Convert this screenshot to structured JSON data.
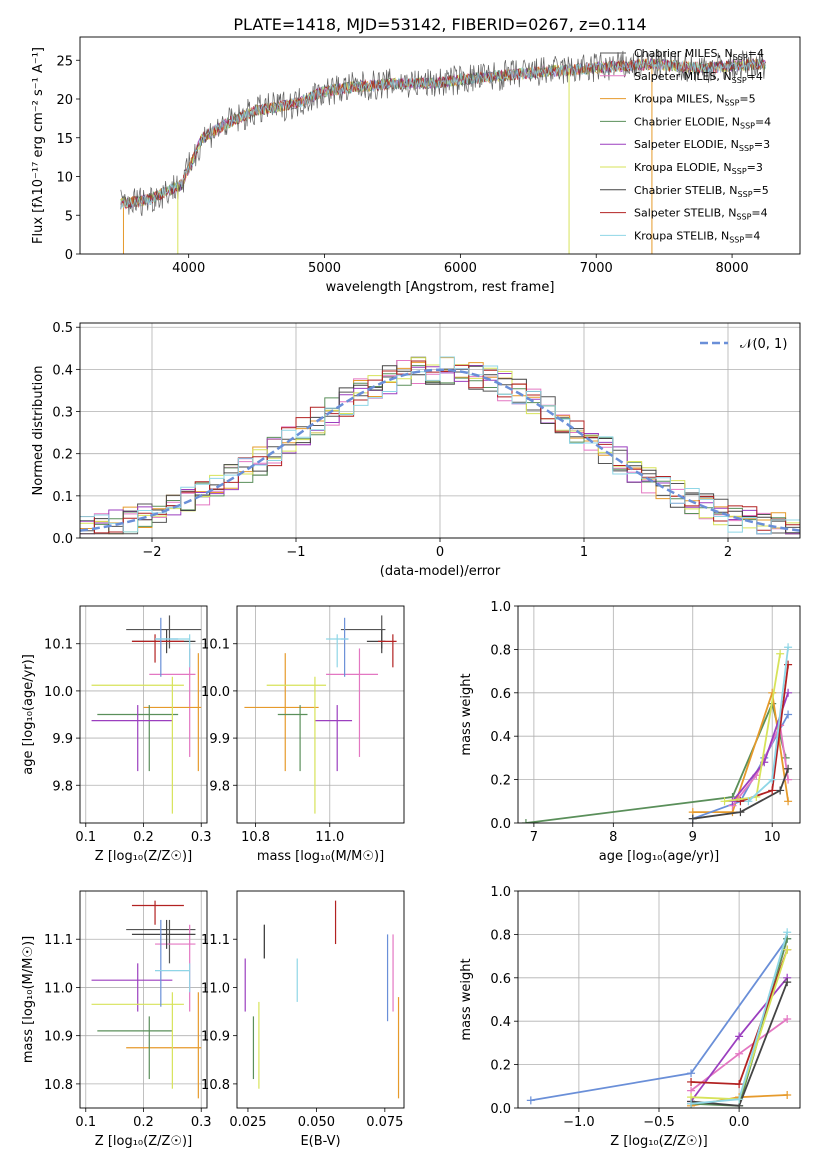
{
  "figure": {
    "title": "PLATE=1418, MJD=53142, FIBERID=0267, z=0.114"
  },
  "colors": {
    "Chabrier MILES": "#555555",
    "Salpeter MILES": "#e377c2",
    "Kroupa MILES": "#e69a2b",
    "Chabrier ELODIE": "#5a8f5a",
    "Salpeter ELODIE": "#9b3fbf",
    "Kroupa ELODIE": "#d7e35a",
    "Chabrier STELIB": "#444444",
    "Salpeter STELIB": "#b22222",
    "Kroupa STELIB": "#8fd6e6",
    "blue_series": "#6a8fd8",
    "orange_series": "#e07b2a"
  },
  "chart_data": [
    {
      "id": "spectrum",
      "type": "line",
      "title": "PLATE=1418, MJD=53142, FIBERID=0267, z=0.114",
      "xlabel": "wavelength [Angstrom, rest frame]",
      "ylabel": "Flux [fλ10⁻¹⁷ erg cm⁻² s⁻¹ A⁻¹]",
      "xlim": [
        3200,
        8500
      ],
      "ylim": [
        0,
        28
      ],
      "xticks": [
        "4000",
        "5000",
        "6000",
        "7000",
        "8000"
      ],
      "yticks": [
        "0",
        "5",
        "10",
        "15",
        "20",
        "25"
      ],
      "legend_position": "right",
      "legend": [
        {
          "label": "Chabrier MILES, N_SSP=4",
          "color_key": "Chabrier MILES"
        },
        {
          "label": "Salpeter MILES, N_SSP=4",
          "color_key": "Salpeter MILES"
        },
        {
          "label": "Kroupa MILES, N_SSP=5",
          "color_key": "Kroupa MILES"
        },
        {
          "label": "Chabrier ELODIE, N_SSP=4",
          "color_key": "Chabrier ELODIE"
        },
        {
          "label": "Salpeter ELODIE, N_SSP=3",
          "color_key": "Salpeter ELODIE"
        },
        {
          "label": "Kroupa ELODIE, N_SSP=3",
          "color_key": "Kroupa ELODIE"
        },
        {
          "label": "Chabrier STELIB, N_SSP=5",
          "color_key": "Chabrier STELIB"
        },
        {
          "label": "Salpeter STELIB, N_SSP=4",
          "color_key": "Salpeter STELIB"
        },
        {
          "label": "Kroupa STELIB, N_SSP=4",
          "color_key": "Kroupa STELIB"
        }
      ],
      "continuum": [
        [
          3500,
          6.5
        ],
        [
          3700,
          7
        ],
        [
          3950,
          9
        ],
        [
          4100,
          15
        ],
        [
          4300,
          17
        ],
        [
          4500,
          18.5
        ],
        [
          4800,
          19.5
        ],
        [
          5000,
          21
        ],
        [
          5200,
          21.5
        ],
        [
          5500,
          22
        ],
        [
          5800,
          22
        ],
        [
          6000,
          22.5
        ],
        [
          6300,
          23
        ],
        [
          6600,
          23.5
        ],
        [
          7000,
          24
        ],
        [
          7400,
          24.5
        ],
        [
          7800,
          24
        ],
        [
          8200,
          24.5
        ]
      ]
    },
    {
      "id": "residual-hist",
      "type": "histogram",
      "xlabel": "(data-model)/error",
      "ylabel": "Normed distribution",
      "xlim": [
        -2.5,
        2.5
      ],
      "ylim": [
        0,
        0.51
      ],
      "xticks": [
        "−2",
        "−1",
        "0",
        "1",
        "2"
      ],
      "yticks": [
        "0.0",
        "0.1",
        "0.2",
        "0.3",
        "0.4",
        "0.5"
      ],
      "legend": [
        {
          "label": "𝒩(0, 1)",
          "style": "dashed"
        }
      ],
      "bin_width": 0.1
    },
    {
      "id": "age-vs-Z",
      "type": "errorbar",
      "xlabel": "Z [log₁₀(Z/Z☉)]",
      "ylabel": "age  [log₁₀(age/yr)]",
      "xlim": [
        0.09,
        0.31
      ],
      "ylim": [
        9.72,
        10.18
      ],
      "xticks": [
        "0.1",
        "0.2",
        "0.3"
      ],
      "yticks": [
        "9.8",
        "9.9",
        "10.0",
        "10.1"
      ],
      "points": [
        {
          "c": "Chabrier MILES",
          "x": 0.245,
          "xe": [
            0.17,
            0.3
          ],
          "y": 10.13,
          "ye": [
            10.09,
            10.16
          ]
        },
        {
          "c": "Salpeter MILES",
          "x": 0.28,
          "xe": [
            0.21,
            0.29
          ],
          "y": 10.035,
          "ye": [
            9.86,
            10.09
          ]
        },
        {
          "c": "Kroupa MILES",
          "x": 0.295,
          "xe": [
            0.2,
            0.3
          ],
          "y": 9.965,
          "ye": [
            9.83,
            10.08
          ]
        },
        {
          "c": "Chabrier ELODIE",
          "x": 0.21,
          "xe": [
            0.12,
            0.26
          ],
          "y": 9.95,
          "ye": [
            9.83,
            9.97
          ]
        },
        {
          "c": "Salpeter ELODIE",
          "x": 0.19,
          "xe": [
            0.11,
            0.25
          ],
          "y": 9.937,
          "ye": [
            9.83,
            9.97
          ]
        },
        {
          "c": "Kroupa ELODIE",
          "x": 0.25,
          "xe": [
            0.11,
            0.27
          ],
          "y": 10.012,
          "ye": [
            9.74,
            10.03
          ]
        },
        {
          "c": "Chabrier STELIB",
          "x": 0.24,
          "xe": [
            0.18,
            0.29
          ],
          "y": 10.105,
          "ye": [
            10.08,
            10.13
          ]
        },
        {
          "c": "Salpeter STELIB",
          "x": 0.22,
          "xe": [
            0.18,
            0.27
          ],
          "y": 10.105,
          "ye": [
            10.06,
            10.12
          ]
        },
        {
          "c": "blue_series",
          "x": 0.23,
          "xe": [
            0.22,
            0.26
          ],
          "y": 10.11,
          "ye": [
            10.03,
            10.155
          ]
        },
        {
          "c": "Kroupa STELIB",
          "x": 0.28,
          "xe": [
            0.22,
            0.28
          ],
          "y": 10.11,
          "ye": [
            10.05,
            10.12
          ]
        }
      ]
    },
    {
      "id": "age-vs-mass",
      "type": "errorbar",
      "xlabel": "mass [log₁₀(M/M☉)]",
      "ylabel": "",
      "xlim": [
        10.75,
        11.2
      ],
      "ylim": [
        9.72,
        10.18
      ],
      "xticks": [
        "10.8",
        "11.0"
      ],
      "yticks": [
        "9.8",
        "9.9",
        "10.0",
        "10.1"
      ],
      "points": [
        {
          "c": "Chabrier MILES",
          "x": 11.14,
          "xe": [
            11.03,
            11.15
          ],
          "y": 10.13,
          "ye": [
            10.09,
            10.16
          ]
        },
        {
          "c": "Salpeter MILES",
          "x": 11.08,
          "xe": [
            10.99,
            11.13
          ],
          "y": 10.035,
          "ye": [
            9.86,
            10.09
          ]
        },
        {
          "c": "Kroupa MILES",
          "x": 10.88,
          "xe": [
            10.77,
            10.97
          ],
          "y": 9.965,
          "ye": [
            9.83,
            10.08
          ]
        },
        {
          "c": "Chabrier ELODIE",
          "x": 10.92,
          "xe": [
            10.86,
            10.94
          ],
          "y": 9.95,
          "ye": [
            9.83,
            9.97
          ]
        },
        {
          "c": "Salpeter ELODIE",
          "x": 11.02,
          "xe": [
            10.96,
            11.06
          ],
          "y": 9.937,
          "ye": [
            9.83,
            9.97
          ]
        },
        {
          "c": "Kroupa ELODIE",
          "x": 10.96,
          "xe": [
            10.83,
            10.99
          ],
          "y": 10.012,
          "ye": [
            9.74,
            10.03
          ]
        },
        {
          "c": "Chabrier STELIB",
          "x": 11.14,
          "xe": [
            11.1,
            11.15
          ],
          "y": 10.105,
          "ye": [
            10.08,
            10.13
          ]
        },
        {
          "c": "Salpeter STELIB",
          "x": 11.17,
          "xe": [
            11.13,
            11.18
          ],
          "y": 10.105,
          "ye": [
            10.05,
            10.12
          ]
        },
        {
          "c": "blue_series",
          "x": 11.04,
          "xe": [
            11.03,
            11.05
          ],
          "y": 10.11,
          "ye": [
            10.03,
            10.155
          ]
        },
        {
          "c": "Kroupa STELIB",
          "x": 11.02,
          "xe": [
            10.99,
            11.05
          ],
          "y": 10.11,
          "ye": [
            10.05,
            10.12
          ]
        }
      ]
    },
    {
      "id": "weight-vs-age",
      "type": "line",
      "xlabel": "age  [log₁₀(age/yr)]",
      "ylabel": "mass weight",
      "xlim": [
        6.8,
        10.35
      ],
      "ylim": [
        0,
        1
      ],
      "xticks": [
        "7",
        "8",
        "9",
        "10"
      ],
      "yticks": [
        "0.0",
        "0.2",
        "0.4",
        "0.6",
        "0.8",
        "1.0"
      ],
      "series": [
        {
          "c": "Chabrier ELODIE",
          "points": [
            [
              6.9,
              0.0
            ],
            [
              9.5,
              0.12
            ],
            [
              10.0,
              0.55
            ],
            [
              10.17,
              0.3
            ]
          ]
        },
        {
          "c": "Kroupa MILES",
          "points": [
            [
              9.0,
              0.05
            ],
            [
              9.5,
              0.05
            ],
            [
              10.0,
              0.6
            ],
            [
              10.2,
              0.1
            ]
          ]
        },
        {
          "c": "blue_series",
          "points": [
            [
              9.0,
              0.02
            ],
            [
              9.6,
              0.1
            ],
            [
              9.9,
              0.3
            ],
            [
              10.2,
              0.5
            ]
          ]
        },
        {
          "c": "Salpeter MILES",
          "points": [
            [
              9.5,
              0.08
            ],
            [
              9.8,
              0.22
            ],
            [
              10.1,
              0.45
            ],
            [
              10.2,
              0.2
            ]
          ]
        },
        {
          "c": "Salpeter ELODIE",
          "points": [
            [
              9.5,
              0.1
            ],
            [
              9.9,
              0.28
            ],
            [
              10.2,
              0.6
            ]
          ]
        },
        {
          "c": "Chabrier STELIB",
          "points": [
            [
              9.0,
              0.02
            ],
            [
              9.6,
              0.05
            ],
            [
              10.1,
              0.15
            ],
            [
              10.2,
              0.25
            ]
          ]
        },
        {
          "c": "Salpeter STELIB",
          "points": [
            [
              9.6,
              0.1
            ],
            [
              10.0,
              0.15
            ],
            [
              10.2,
              0.73
            ]
          ]
        },
        {
          "c": "Kroupa ELODIE",
          "points": [
            [
              9.4,
              0.1
            ],
            [
              9.8,
              0.12
            ],
            [
              10.1,
              0.78
            ]
          ]
        },
        {
          "c": "Kroupa STELIB",
          "points": [
            [
              9.7,
              0.1
            ],
            [
              10.0,
              0.2
            ],
            [
              10.2,
              0.81
            ]
          ]
        }
      ]
    },
    {
      "id": "mass-vs-Z",
      "type": "errorbar",
      "xlabel": "Z [log₁₀(Z/Z☉)]",
      "ylabel": "mass [log₁₀(M/M☉)]",
      "xlim": [
        0.09,
        0.31
      ],
      "ylim": [
        10.75,
        11.2
      ],
      "xticks": [
        "0.1",
        "0.2",
        "0.3"
      ],
      "yticks": [
        "10.8",
        "10.9",
        "11.0",
        "11.1"
      ],
      "points": [
        {
          "c": "Chabrier MILES",
          "x": 0.245,
          "xe": [
            0.17,
            0.29
          ],
          "y": 11.12,
          "ye": [
            11.05,
            11.14
          ]
        },
        {
          "c": "Salpeter MILES",
          "x": 0.28,
          "xe": [
            0.22,
            0.29
          ],
          "y": 11.09,
          "ye": [
            10.95,
            11.13
          ]
        },
        {
          "c": "Kroupa MILES",
          "x": 0.295,
          "xe": [
            0.17,
            0.3
          ],
          "y": 10.875,
          "ye": [
            10.77,
            10.99
          ]
        },
        {
          "c": "Chabrier ELODIE",
          "x": 0.21,
          "xe": [
            0.12,
            0.25
          ],
          "y": 10.91,
          "ye": [
            10.81,
            10.94
          ]
        },
        {
          "c": "Salpeter ELODIE",
          "x": 0.19,
          "xe": [
            0.11,
            0.25
          ],
          "y": 11.015,
          "ye": [
            10.95,
            11.05
          ]
        },
        {
          "c": "Kroupa ELODIE",
          "x": 0.25,
          "xe": [
            0.11,
            0.27
          ],
          "y": 10.965,
          "ye": [
            10.79,
            10.99
          ]
        },
        {
          "c": "Chabrier STELIB",
          "x": 0.24,
          "xe": [
            0.18,
            0.29
          ],
          "y": 11.11,
          "ye": [
            11.08,
            11.14
          ]
        },
        {
          "c": "Salpeter STELIB",
          "x": 0.22,
          "xe": [
            0.18,
            0.27
          ],
          "y": 11.17,
          "ye": [
            11.13,
            11.18
          ]
        },
        {
          "c": "blue_series",
          "x": 0.23,
          "xe": [
            0.22,
            0.28
          ],
          "y": 11.035,
          "ye": [
            10.96,
            11.14
          ]
        },
        {
          "c": "Kroupa STELIB",
          "x": 0.28,
          "xe": [
            0.22,
            0.28
          ],
          "y": 11.035,
          "ye": [
            10.99,
            11.05
          ]
        }
      ]
    },
    {
      "id": "mass-vs-ebv",
      "type": "errorbar",
      "xlabel": "E(B-V)",
      "ylabel": "",
      "xlim": [
        0.021,
        0.082
      ],
      "ylim": [
        10.75,
        11.2
      ],
      "xticks": [
        "0.025",
        "0.050",
        "0.075"
      ],
      "yticks": [
        "10.8",
        "10.9",
        "11.0",
        "11.1"
      ],
      "points": [
        {
          "c": "Chabrier MILES",
          "x": 0.031,
          "ye": [
            11.06,
            11.13
          ]
        },
        {
          "c": "Salpeter MILES",
          "x": 0.078,
          "ye": [
            10.95,
            11.11
          ]
        },
        {
          "c": "Kroupa MILES",
          "x": 0.08,
          "ye": [
            10.77,
            10.98
          ]
        },
        {
          "c": "Chabrier ELODIE",
          "x": 0.027,
          "ye": [
            10.81,
            10.94
          ]
        },
        {
          "c": "Salpeter ELODIE",
          "x": 0.024,
          "ye": [
            10.95,
            11.06
          ]
        },
        {
          "c": "Kroupa ELODIE",
          "x": 0.029,
          "ye": [
            10.79,
            10.97
          ]
        },
        {
          "c": "Chabrier STELIB",
          "x": 0.031,
          "ye": [
            11.06,
            11.13
          ]
        },
        {
          "c": "Salpeter STELIB",
          "x": 0.057,
          "ye": [
            11.09,
            11.18
          ]
        },
        {
          "c": "Kroupa STELIB",
          "x": 0.043,
          "ye": [
            10.97,
            11.06
          ]
        },
        {
          "c": "blue_series",
          "x": 0.076,
          "ye": [
            10.93,
            11.11
          ]
        }
      ]
    },
    {
      "id": "weight-vs-Z",
      "type": "line",
      "xlabel": "Z [log₁₀(Z/Z☉)]",
      "ylabel": "mass weight",
      "xlim": [
        -1.38,
        0.38
      ],
      "ylim": [
        0,
        1
      ],
      "xticks": [
        "−1.0",
        "−0.5",
        "0.0"
      ],
      "yticks": [
        "0.0",
        "0.2",
        "0.4",
        "0.6",
        "0.8",
        "1.0"
      ],
      "series": [
        {
          "c": "blue_series",
          "points": [
            [
              -1.3,
              0.035
            ],
            [
              -0.3,
              0.16
            ],
            [
              0.3,
              0.78
            ]
          ]
        },
        {
          "c": "Kroupa MILES",
          "points": [
            [
              -0.3,
              0.01
            ],
            [
              0.0,
              0.05
            ],
            [
              0.3,
              0.06
            ]
          ]
        },
        {
          "c": "Salpeter MILES",
          "points": [
            [
              -0.3,
              0.08
            ],
            [
              0.0,
              0.25
            ],
            [
              0.3,
              0.41
            ]
          ]
        },
        {
          "c": "Salpeter ELODIE",
          "points": [
            [
              -0.3,
              0.03
            ],
            [
              0.0,
              0.33
            ],
            [
              0.3,
              0.6
            ]
          ]
        },
        {
          "c": "Chabrier ELODIE",
          "points": [
            [
              -0.3,
              0.02
            ],
            [
              0.0,
              0.01
            ],
            [
              0.3,
              0.78
            ]
          ]
        },
        {
          "c": "Chabrier STELIB",
          "points": [
            [
              -0.3,
              0.03
            ],
            [
              0.0,
              0.01
            ],
            [
              0.3,
              0.58
            ]
          ]
        },
        {
          "c": "Salpeter STELIB",
          "points": [
            [
              -0.3,
              0.12
            ],
            [
              0.0,
              0.11
            ],
            [
              0.3,
              0.73
            ]
          ]
        },
        {
          "c": "Kroupa ELODIE",
          "points": [
            [
              -0.3,
              0.05
            ],
            [
              0.0,
              0.04
            ],
            [
              0.3,
              0.73
            ]
          ]
        },
        {
          "c": "Kroupa STELIB",
          "points": [
            [
              -0.3,
              0.02
            ],
            [
              0.0,
              0.04
            ],
            [
              0.3,
              0.81
            ]
          ]
        }
      ]
    }
  ]
}
